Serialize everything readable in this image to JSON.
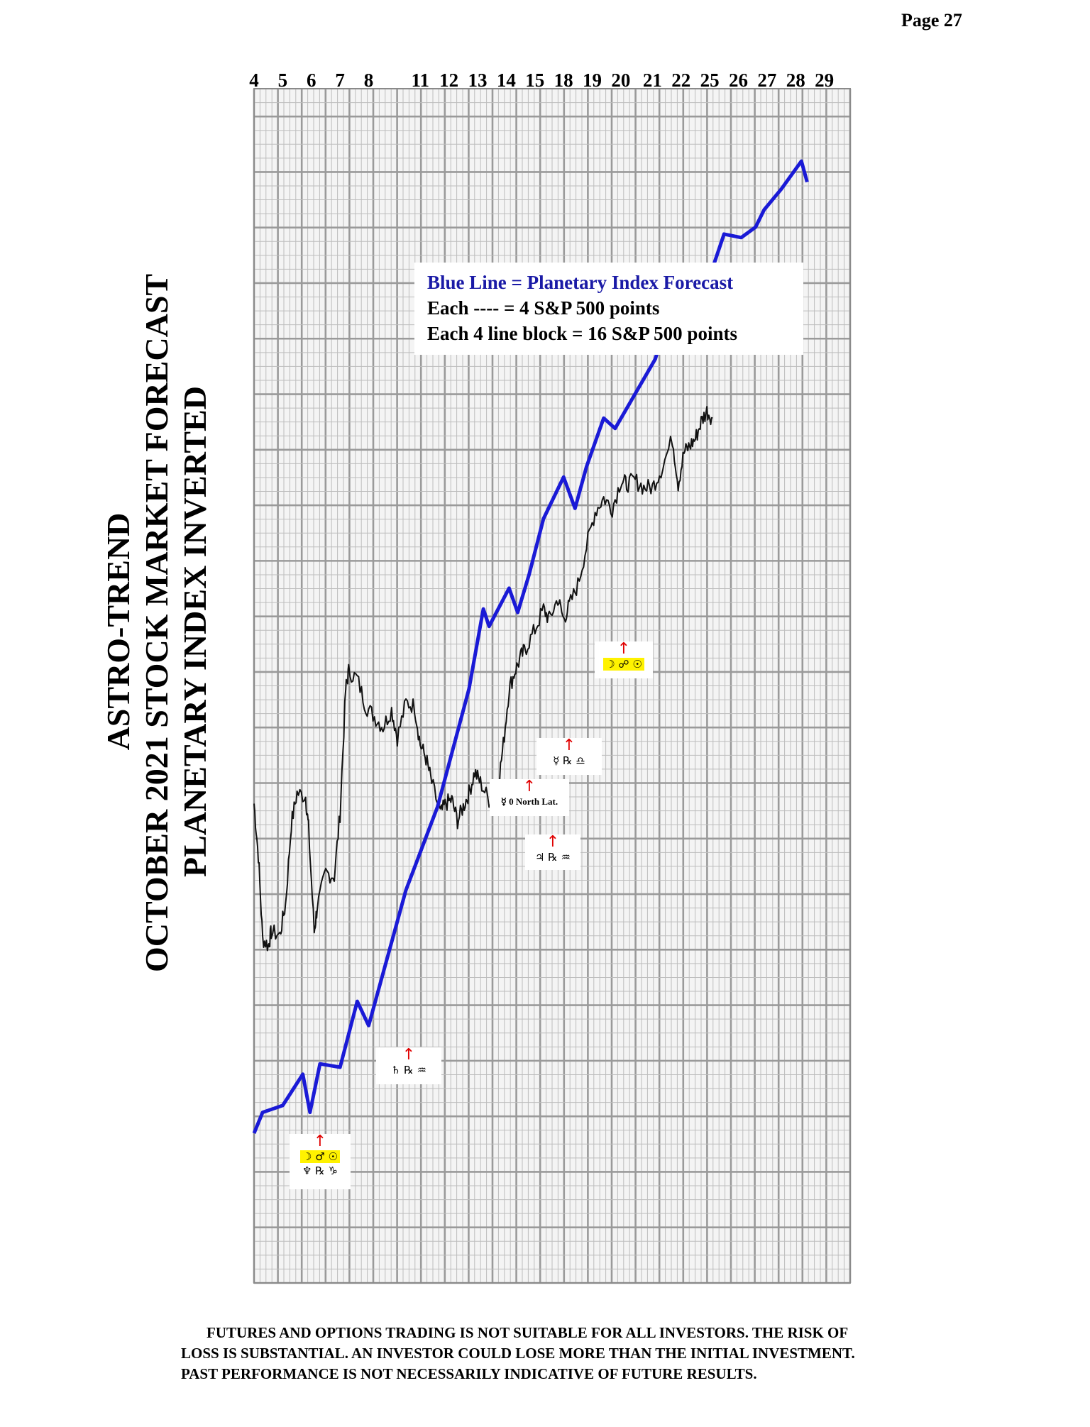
{
  "page": {
    "number_label": "Page  27"
  },
  "titles": {
    "line1": "ASTRO-TREND",
    "line2": "OCTOBER 2021 STOCK MARKET FORECAST",
    "line3": "PLANETARY INDEX INVERTED"
  },
  "legend": {
    "line1": "Blue Line = Planetary Index Forecast",
    "line2": "Each ---- =    4 S&P 500 points",
    "line3": "Each 4 line block =  16  S&P 500 points"
  },
  "markers": {
    "m1": {
      "arrow": "↑",
      "row1": "☽ ♂ ☉",
      "row2": "♆ ℞ ♑"
    },
    "m2": {
      "arrow": "↑",
      "row1": "♄ ℞ ♒"
    },
    "m3": {
      "arrow": "↑",
      "row1": "☿ 0 North Lat."
    },
    "m4": {
      "arrow": "↑",
      "row1": "♃ ℞ ♒"
    },
    "m5": {
      "arrow": "↑",
      "row1": "☿ ℞ ♎"
    },
    "m6": {
      "arrow": "↑",
      "row1": "☽ ☍ ☉"
    }
  },
  "disclaimer": {
    "line1": "FUTURES AND OPTIONS TRADING IS NOT SUITABLE FOR ALL INVESTORS.  THE RISK OF",
    "line2": "LOSS IS SUBSTANTIAL.  AN INVESTOR COULD LOSE MORE THAN THE INITIAL INVESTMENT.",
    "line3": "PAST PERFORMANCE IS NOT NECESSARILY INDICATIVE OF FUTURE RESULTS."
  },
  "colors": {
    "forecast_line": "#1a1ad6",
    "price_line": "#111111",
    "grid_light": "#bdbdbd",
    "grid_heavy": "#9a9a9a",
    "arrow": "#e00000",
    "highlight": "#fff200"
  },
  "chart_data": {
    "type": "line",
    "title": "",
    "categories": [
      "4",
      "5",
      "6",
      "7",
      "8",
      "11",
      "12",
      "13",
      "14",
      "15",
      "18",
      "19",
      "20",
      "21",
      "22",
      "25",
      "26",
      "27",
      "28",
      "29"
    ],
    "x_position_index": [
      0,
      1,
      2,
      3,
      4,
      5.8,
      6.8,
      7.8,
      8.8,
      9.8,
      10.8,
      11.8,
      12.8,
      13.9,
      14.9,
      15.9,
      16.9,
      17.9,
      18.9,
      19.9
    ],
    "axis_span_days": 20.8,
    "y_units": "S&P 500 points (inverted planetary index scale, each minor line = 4 points, relative units)",
    "ylim": [
      0,
      344
    ],
    "grid": true,
    "series": [
      {
        "name": "Blue Line = Planetary Index Forecast",
        "points": [
          [
            0,
            0
          ],
          [
            0.3,
            6
          ],
          [
            1.0,
            8
          ],
          [
            1.7,
            17
          ],
          [
            1.95,
            6
          ],
          [
            2.3,
            20
          ],
          [
            3.0,
            19
          ],
          [
            3.6,
            38
          ],
          [
            4.0,
            31
          ],
          [
            5.3,
            70
          ],
          [
            6.4,
            94
          ],
          [
            7.5,
            128
          ],
          [
            8.0,
            151
          ],
          [
            8.2,
            146
          ],
          [
            8.9,
            157
          ],
          [
            9.2,
            150
          ],
          [
            9.6,
            161
          ],
          [
            10.1,
            177
          ],
          [
            10.8,
            189
          ],
          [
            11.2,
            180
          ],
          [
            11.6,
            192
          ],
          [
            12.2,
            206
          ],
          [
            12.6,
            203
          ],
          [
            13.3,
            213
          ],
          [
            14.0,
            223
          ],
          [
            14.4,
            234
          ],
          [
            15.0,
            241
          ],
          [
            15.5,
            237
          ],
          [
            16.4,
            259
          ],
          [
            17.0,
            258
          ],
          [
            17.5,
            261
          ],
          [
            17.8,
            266
          ],
          [
            18.4,
            272
          ],
          [
            19.1,
            280
          ],
          [
            19.3,
            274
          ]
        ]
      },
      {
        "name": "",
        "points": [
          [
            0,
            95
          ],
          [
            0.15,
            80
          ],
          [
            0.3,
            56
          ],
          [
            0.5,
            54
          ],
          [
            0.6,
            58
          ],
          [
            0.9,
            57
          ],
          [
            1.1,
            66
          ],
          [
            1.3,
            89
          ],
          [
            1.5,
            98
          ],
          [
            1.8,
            97
          ],
          [
            1.9,
            88
          ],
          [
            2.1,
            58
          ],
          [
            2.2,
            65
          ],
          [
            2.5,
            75
          ],
          [
            2.8,
            74
          ],
          [
            3.0,
            92
          ],
          [
            3.2,
            128
          ],
          [
            3.3,
            133
          ],
          [
            3.6,
            131
          ],
          [
            3.9,
            123
          ],
          [
            4.2,
            120
          ],
          [
            4.5,
            117
          ],
          [
            4.8,
            122
          ],
          [
            5.0,
            114
          ],
          [
            5.3,
            124
          ],
          [
            5.6,
            123
          ],
          [
            5.8,
            112
          ],
          [
            6.0,
            108
          ],
          [
            6.2,
            101
          ],
          [
            6.5,
            92
          ],
          [
            6.7,
            95
          ],
          [
            6.9,
            96
          ],
          [
            7.1,
            90
          ],
          [
            7.3,
            94
          ],
          [
            7.5,
            98
          ],
          [
            7.7,
            104
          ],
          [
            7.9,
            101
          ],
          [
            8.2,
            96
          ],
          [
            8.5,
            99
          ],
          [
            8.7,
            112
          ],
          [
            8.9,
            128
          ],
          [
            9.1,
            133
          ],
          [
            9.3,
            137
          ],
          [
            9.5,
            140
          ],
          [
            9.8,
            145
          ],
          [
            10.1,
            151
          ],
          [
            10.3,
            148
          ],
          [
            10.6,
            154
          ],
          [
            10.8,
            148
          ],
          [
            11.0,
            152
          ],
          [
            11.3,
            158
          ],
          [
            11.6,
            169
          ],
          [
            11.9,
            179
          ],
          [
            12.2,
            183
          ],
          [
            12.5,
            180
          ],
          [
            12.8,
            188
          ],
          [
            13.0,
            187
          ],
          [
            13.3,
            188
          ],
          [
            13.6,
            186
          ],
          [
            13.9,
            186
          ],
          [
            14.2,
            191
          ],
          [
            14.6,
            200
          ],
          [
            14.8,
            187
          ],
          [
            15.0,
            196
          ],
          [
            15.2,
            198
          ],
          [
            15.4,
            200
          ],
          [
            15.6,
            205
          ],
          [
            15.8,
            208
          ],
          [
            16.0,
            206
          ]
        ]
      }
    ]
  }
}
